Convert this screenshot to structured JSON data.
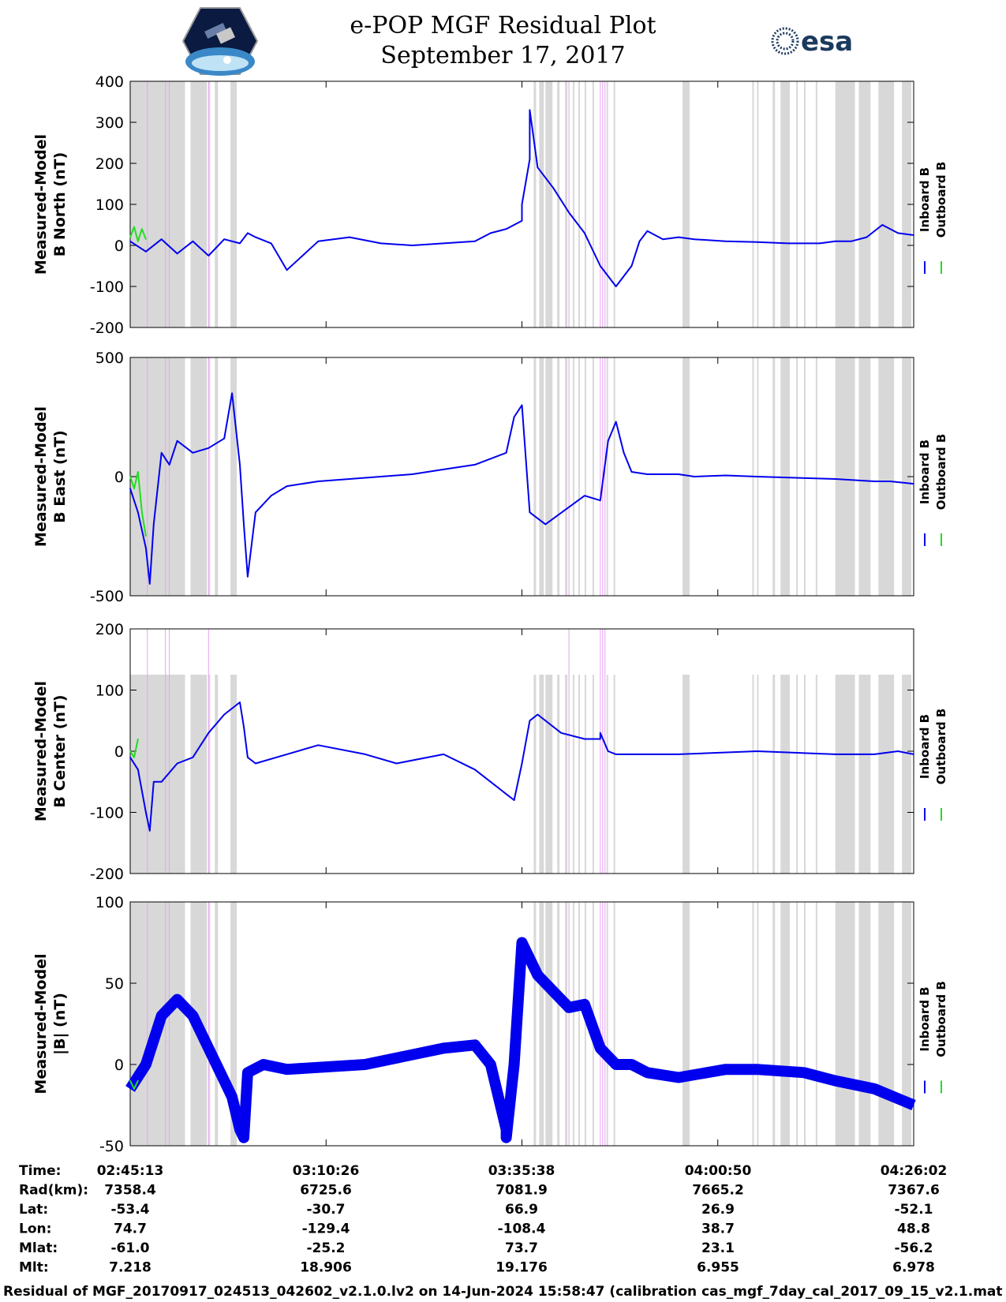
{
  "title": "e-POP MGF Residual Plot",
  "subtitle": "September 17, 2017",
  "logos": {
    "left": "cassiope-satellite-logo",
    "right_text": "esa"
  },
  "colors": {
    "inboard": "#0000ee",
    "outboard": "#22dd22",
    "shade": "#d8d8d8",
    "marker": "#e6a3f0"
  },
  "chart_data": [
    {
      "type": "line",
      "ylabel": [
        "Measured-Model",
        "B North (nT)"
      ],
      "ylim": [
        -200,
        400
      ],
      "yticks": [
        "-200",
        "-100",
        "0",
        "100",
        "200",
        "300",
        "400"
      ],
      "series": [
        {
          "name": "Inboard B",
          "color": "#0000ee",
          "x": [
            0,
            0.02,
            0.04,
            0.06,
            0.08,
            0.1,
            0.12,
            0.14,
            0.15,
            0.16,
            0.18,
            0.2,
            0.24,
            0.28,
            0.32,
            0.36,
            0.4,
            0.44,
            0.46,
            0.48,
            0.5,
            0.5,
            0.51,
            0.51,
            0.52,
            0.54,
            0.55,
            0.56,
            0.58,
            0.6,
            0.62,
            0.64,
            0.65,
            0.66,
            0.68,
            0.7,
            0.72,
            0.76,
            0.8,
            0.84,
            0.88,
            0.9,
            0.92,
            0.94,
            0.96,
            0.98,
            1
          ],
          "y": [
            10,
            -15,
            15,
            -20,
            10,
            -25,
            15,
            5,
            30,
            20,
            5,
            -60,
            10,
            20,
            5,
            0,
            5,
            10,
            30,
            40,
            60,
            100,
            210,
            330,
            190,
            140,
            110,
            80,
            30,
            -50,
            -100,
            -50,
            10,
            35,
            15,
            20,
            15,
            10,
            8,
            5,
            5,
            10,
            10,
            20,
            50,
            30,
            25
          ]
        },
        {
          "name": "Outboard B",
          "color": "#22dd22",
          "x": [
            0,
            0.005,
            0.01,
            0.015,
            0.02
          ],
          "y": [
            20,
            45,
            10,
            40,
            15
          ]
        }
      ],
      "legend": [
        "Inboard B",
        "Outboard B"
      ],
      "legend_position": "right"
    },
    {
      "type": "line",
      "ylabel": [
        "Measured-Model",
        "B East (nT)"
      ],
      "ylim": [
        -500,
        500
      ],
      "yticks": [
        "-500",
        "0",
        "500"
      ],
      "series": [
        {
          "name": "Inboard B",
          "color": "#0000ee",
          "x": [
            0,
            0.01,
            0.02,
            0.025,
            0.03,
            0.04,
            0.05,
            0.06,
            0.08,
            0.1,
            0.12,
            0.13,
            0.14,
            0.145,
            0.15,
            0.16,
            0.18,
            0.2,
            0.24,
            0.3,
            0.36,
            0.4,
            0.44,
            0.48,
            0.49,
            0.5,
            0.51,
            0.53,
            0.58,
            0.6,
            0.61,
            0.62,
            0.63,
            0.64,
            0.66,
            0.7,
            0.72,
            0.76,
            0.8,
            0.9,
            0.95,
            0.97,
            1
          ],
          "y": [
            -50,
            -150,
            -300,
            -450,
            -200,
            100,
            50,
            150,
            100,
            120,
            160,
            350,
            50,
            -200,
            -420,
            -150,
            -80,
            -40,
            -20,
            -5,
            10,
            30,
            50,
            100,
            250,
            300,
            -150,
            -200,
            -80,
            -100,
            150,
            230,
            100,
            20,
            10,
            10,
            0,
            5,
            0,
            -10,
            -20,
            -20,
            -30
          ]
        },
        {
          "name": "Outboard B",
          "color": "#22dd22",
          "x": [
            0,
            0.005,
            0.01,
            0.015,
            0.02
          ],
          "y": [
            0,
            -50,
            20,
            -150,
            -250
          ]
        }
      ],
      "legend": [
        "Inboard B",
        "Outboard B"
      ],
      "legend_position": "right"
    },
    {
      "type": "line",
      "ylabel": [
        "Measured-Model",
        "B Center (nT)"
      ],
      "ylim": [
        -200,
        200
      ],
      "yticks": [
        "-200",
        "-100",
        "0",
        "100",
        "200"
      ],
      "series": [
        {
          "name": "Inboard B",
          "color": "#0000ee",
          "x": [
            0,
            0.01,
            0.02,
            0.025,
            0.03,
            0.04,
            0.06,
            0.08,
            0.1,
            0.12,
            0.14,
            0.145,
            0.15,
            0.16,
            0.2,
            0.24,
            0.3,
            0.34,
            0.4,
            0.44,
            0.46,
            0.48,
            0.49,
            0.5,
            0.51,
            0.52,
            0.55,
            0.58,
            0.6,
            0.6,
            0.61,
            0.62,
            0.64,
            0.7,
            0.8,
            0.9,
            0.95,
            0.98,
            1
          ],
          "y": [
            -10,
            -30,
            -100,
            -130,
            -50,
            -50,
            -20,
            -10,
            30,
            60,
            80,
            40,
            -10,
            -20,
            -5,
            10,
            -5,
            -20,
            -5,
            -30,
            -50,
            -70,
            -80,
            -20,
            50,
            60,
            30,
            20,
            20,
            30,
            0,
            -5,
            -5,
            -5,
            0,
            -5,
            -5,
            0,
            -5
          ]
        },
        {
          "name": "Outboard B",
          "color": "#22dd22",
          "x": [
            0,
            0.005,
            0.01
          ],
          "y": [
            0,
            -10,
            20
          ]
        }
      ],
      "legend": [
        "Inboard B",
        "Outboard B"
      ],
      "legend_position": "right"
    },
    {
      "type": "line",
      "ylabel": [
        "Measured-Model",
        "|B| (nT)"
      ],
      "ylim": [
        -50,
        100
      ],
      "yticks": [
        "-50",
        "0",
        "50",
        "100"
      ],
      "series": [
        {
          "name": "Inboard B",
          "color": "#0000ee",
          "x": [
            0,
            0.02,
            0.04,
            0.06,
            0.08,
            0.1,
            0.12,
            0.13,
            0.14,
            0.145,
            0.15,
            0.17,
            0.2,
            0.3,
            0.4,
            0.44,
            0.46,
            0.48,
            0.48,
            0.49,
            0.5,
            0.52,
            0.56,
            0.58,
            0.6,
            0.62,
            0.64,
            0.66,
            0.7,
            0.76,
            0.8,
            0.86,
            0.9,
            0.95,
            1
          ],
          "y": [
            -15,
            0,
            30,
            40,
            30,
            10,
            -10,
            -20,
            -40,
            -45,
            -5,
            0,
            -3,
            0,
            10,
            12,
            0,
            -40,
            -45,
            0,
            75,
            55,
            35,
            37,
            10,
            0,
            0,
            -5,
            -8,
            -3,
            -3,
            -5,
            -10,
            -15,
            -25
          ]
        },
        {
          "name": "Outboard B",
          "color": "#22dd22",
          "x": [
            0,
            0.005,
            0.01
          ],
          "y": [
            -10,
            -15,
            -10
          ]
        }
      ],
      "legend": [
        "Inboard B",
        "Outboard B"
      ],
      "legend_position": "right"
    }
  ],
  "xaxis": {
    "rows": [
      {
        "label": "Time:",
        "values": [
          "02:45:13",
          "03:10:26",
          "03:35:38",
          "04:00:50",
          "04:26:02"
        ]
      },
      {
        "label": "Rad(km):",
        "values": [
          "7358.4",
          "6725.6",
          "7081.9",
          "7665.2",
          "7367.6"
        ]
      },
      {
        "label": "Lat:",
        "values": [
          "-53.4",
          "-30.7",
          "66.9",
          "26.9",
          "-52.1"
        ]
      },
      {
        "label": "Lon:",
        "values": [
          "74.7",
          "-129.4",
          "-108.4",
          "38.7",
          "48.8"
        ]
      },
      {
        "label": "Mlat:",
        "values": [
          "-61.0",
          "-25.2",
          "73.7",
          "23.1",
          "-56.2"
        ]
      },
      {
        "label": "Mlt:",
        "values": [
          "7.218",
          "18.906",
          "19.176",
          "6.955",
          "6.978"
        ]
      }
    ]
  },
  "shaded_intervals": [
    [
      0,
      0.07
    ],
    [
      0.077,
      0.098
    ],
    [
      0.1,
      0.102
    ],
    [
      0.108,
      0.112
    ],
    [
      0.128,
      0.136
    ],
    [
      0.515,
      0.518
    ],
    [
      0.522,
      0.528
    ],
    [
      0.53,
      0.539
    ],
    [
      0.545,
      0.548
    ],
    [
      0.555,
      0.558
    ],
    [
      0.565,
      0.567
    ],
    [
      0.572,
      0.574
    ],
    [
      0.58,
      0.582
    ],
    [
      0.59,
      0.592
    ],
    [
      0.608,
      0.61
    ],
    [
      0.617,
      0.619
    ],
    [
      0.705,
      0.714
    ],
    [
      0.794,
      0.796
    ],
    [
      0.8,
      0.802
    ],
    [
      0.82,
      0.823
    ],
    [
      0.83,
      0.842
    ],
    [
      0.85,
      0.852
    ],
    [
      0.86,
      0.862
    ],
    [
      0.875,
      0.877
    ],
    [
      0.9,
      0.925
    ],
    [
      0.93,
      0.945
    ],
    [
      0.955,
      0.975
    ],
    [
      0.985,
      0.997
    ]
  ],
  "markers": [
    0.022,
    0.045,
    0.05,
    0.1,
    0.56,
    0.6,
    0.603,
    0.606
  ],
  "footer": "Residual of MGF_20170917_024513_042602_v2.1.0.lv2 on 14-Jun-2024 15:58:47 (calibration cas_mgf_7day_cal_2017_09_15_v2.1.mat )"
}
